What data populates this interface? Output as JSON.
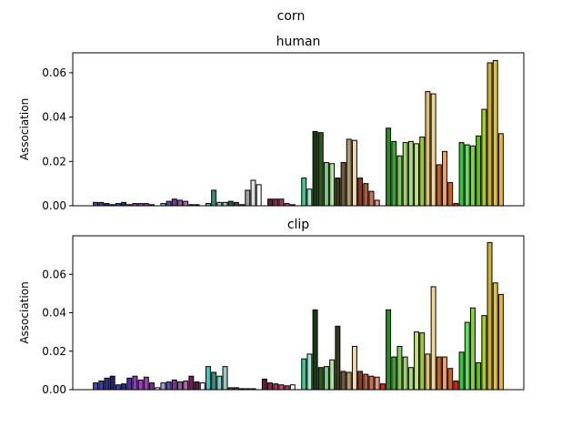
{
  "chart_data": {
    "type": "bar",
    "suptitle": "corn",
    "panels": [
      {
        "title": "human",
        "ylabel": "Association",
        "ylim": [
          0,
          0.069
        ],
        "yticks": [
          "0.00",
          "0.02",
          "0.04",
          "0.06"
        ],
        "ytick_values": [
          0,
          0.02,
          0.04,
          0.06
        ],
        "values": [
          0.0015,
          0.0015,
          0.001,
          0.0005,
          0.001,
          0.0015,
          0.0005,
          0.001,
          0.001,
          0.001,
          0.0005,
          0,
          0.001,
          0.002,
          0.003,
          0.0025,
          0.002,
          0.0005,
          0.0005,
          0,
          0.001,
          0.007,
          0.0015,
          0.0015,
          0.002,
          0.0015,
          0.0005,
          0.007,
          0.0115,
          0.0095,
          0,
          0.003,
          0.003,
          0.003,
          0.001,
          0.0005,
          0,
          0.0125,
          0.0075,
          0.0335,
          0.033,
          0.0195,
          0.019,
          0.0125,
          0.0195,
          0.03,
          0.0295,
          0.0125,
          0.01,
          0.0065,
          0.0025,
          0,
          0.035,
          0.029,
          0.0225,
          0.0285,
          0.029,
          0.028,
          0.031,
          0.0515,
          0.0505,
          0.0185,
          0.0245,
          0.0105,
          0.001,
          0.0285,
          0.0275,
          0.027,
          0.0315,
          0.0435,
          0.0645,
          0.0655,
          0.0325
        ],
        "colors": [
          "#3b4bc8",
          "#3a3fa8",
          "#2c3080",
          "#232366",
          "#3445b8",
          "#2a2a8a",
          "#5a2aa8",
          "#8a3cc0",
          "#a040c8",
          "#a43ab4",
          "#7a2a96",
          "#ffffff",
          "#a0a0d0",
          "#5a50a8",
          "#7a3a8a",
          "#8a5aa0",
          "#b06aa0",
          "#7a1a5a",
          "#5a1a3a",
          "#ffffff",
          "#40c8c0",
          "#3a8a78",
          "#80d0c8",
          "#a0c8c0",
          "#2a5a50",
          "#305048",
          "#101010",
          "#a0a0a0",
          "#e0e0e0",
          "#ffffff",
          "#ffffff",
          "#6a1a3a",
          "#8a2a4a",
          "#a03a5a",
          "#c04a7a",
          "#a03a6a",
          "#ffffff",
          "#40c890",
          "#a0e8c8",
          "#1a3a10",
          "#2a5a20",
          "#80c880",
          "#b0e0a0",
          "#3a3a20",
          "#6a5a3a",
          "#b09a70",
          "#f0d8b0",
          "#8a3a1a",
          "#b05a3a",
          "#d07050",
          "#e09a80",
          "#ffffff",
          "#2a8a20",
          "#40a030",
          "#80c860",
          "#a0d070",
          "#b0d880",
          "#c0e080",
          "#a0c830",
          "#e0c070",
          "#f0d890",
          "#c86020",
          "#f0a060",
          "#d06020",
          "#e02020",
          "#40c040",
          "#60e060",
          "#80d040",
          "#60c020",
          "#a0d020",
          "#d0b030",
          "#e0c040",
          "#f0b040"
        ]
      },
      {
        "title": "clip",
        "ylabel": "Association",
        "ylim": [
          0,
          0.08
        ],
        "yticks": [
          "0.00",
          "0.02",
          "0.04",
          "0.06"
        ],
        "ytick_values": [
          0,
          0.02,
          0.04,
          0.06
        ],
        "values": [
          0.0035,
          0.0045,
          0.006,
          0.007,
          0.0025,
          0.003,
          0.006,
          0.007,
          0.005,
          0.0065,
          0.0035,
          0.001,
          0.0035,
          0.004,
          0.005,
          0.004,
          0.0045,
          0.007,
          0.004,
          0.0035,
          0.012,
          0.009,
          0.007,
          0.012,
          0.001,
          0.001,
          0.0005,
          0.0005,
          0.0005,
          0,
          0.0055,
          0.0035,
          0.003,
          0.0025,
          0.002,
          0.0025,
          0,
          0.016,
          0.0185,
          0.0415,
          0.0115,
          0.012,
          0.0155,
          0.033,
          0.0095,
          0.009,
          0.0225,
          0.0095,
          0.008,
          0.007,
          0.0065,
          0.003,
          0.0415,
          0.017,
          0.0225,
          0.017,
          0.0115,
          0.03,
          0.0295,
          0.0185,
          0.0535,
          0.017,
          0.017,
          0.011,
          0.0045,
          0.0195,
          0.035,
          0.0425,
          0.014,
          0.0385,
          0.0765,
          0.0555,
          0.0495
        ],
        "colors": [
          "#3b4bc8",
          "#3a3fa8",
          "#2c3080",
          "#232366",
          "#3445b8",
          "#2a2a8a",
          "#5a2aa8",
          "#8a3cc0",
          "#a040c8",
          "#a43ab4",
          "#7a2a96",
          "#ffffff",
          "#a0a0d0",
          "#5a50a8",
          "#7a3a8a",
          "#8a5aa0",
          "#b06aa0",
          "#7a1a5a",
          "#5a1a3a",
          "#ffffff",
          "#40c8c0",
          "#3a8a78",
          "#80d0c8",
          "#a0c8c0",
          "#2a5a50",
          "#305048",
          "#101010",
          "#a0a0a0",
          "#e0e0e0",
          "#ffffff",
          "#6a1a3a",
          "#8a2a4a",
          "#a03a5a",
          "#c04a7a",
          "#a03a6a",
          "#ffffff",
          "#ffffff",
          "#40c890",
          "#a0e8c8",
          "#1a3a10",
          "#2a5a20",
          "#80c880",
          "#b0e0a0",
          "#3a3a20",
          "#6a5a3a",
          "#b09a70",
          "#f0d8b0",
          "#8a3a1a",
          "#b05a3a",
          "#d07050",
          "#e09a80",
          "#e02020",
          "#2a8a20",
          "#40a030",
          "#80c860",
          "#a0d070",
          "#b0d880",
          "#c0e080",
          "#a0c830",
          "#e0c070",
          "#f0d890",
          "#c86020",
          "#f0a060",
          "#d06020",
          "#e02020",
          "#40c040",
          "#60e060",
          "#80d040",
          "#60c020",
          "#a0d020",
          "#d0b030",
          "#e0c040",
          "#f0b040"
        ]
      }
    ]
  }
}
